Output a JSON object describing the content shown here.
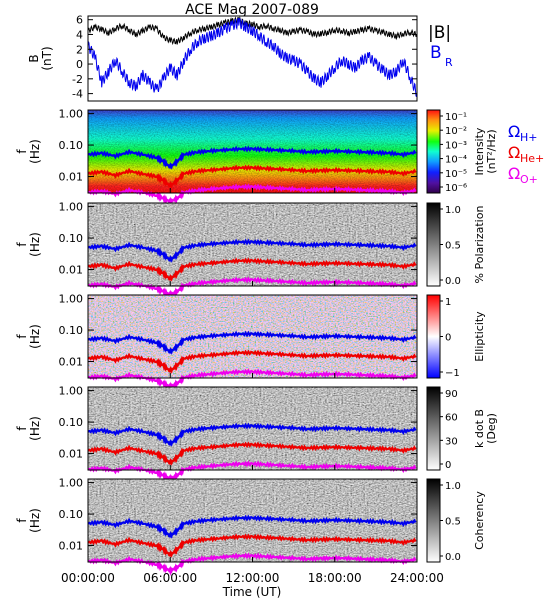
{
  "title": "ACE Mag 2007-089",
  "chart_data": [
    {
      "type": "line",
      "panel": "magnetic-field",
      "ylabel": "B\n(nT)",
      "y_ticks": [
        -4,
        -2,
        0,
        2,
        4,
        6
      ],
      "ylim": [
        -5,
        6.5
      ],
      "x_range_hours": [
        0,
        24
      ],
      "series": [
        {
          "name": "|B|",
          "color": "#000000",
          "x": [
            0,
            0.5,
            1,
            1.5,
            2,
            2.5,
            3,
            3.5,
            4,
            4.5,
            5,
            5.5,
            6,
            6.5,
            7,
            7.5,
            8,
            8.5,
            9,
            9.5,
            10,
            10.5,
            11,
            11.5,
            12,
            12.5,
            13,
            13.5,
            14,
            14.5,
            15,
            15.5,
            16,
            16.5,
            17,
            17.5,
            18,
            18.5,
            19,
            19.5,
            20,
            20.5,
            21,
            21.5,
            22,
            22.5,
            23,
            23.5,
            24
          ],
          "values": [
            4.5,
            5.0,
            4.7,
            4.2,
            4.8,
            5.2,
            4.6,
            4.0,
            4.5,
            5.0,
            4.8,
            3.6,
            3.2,
            3.0,
            3.6,
            4.2,
            4.6,
            4.8,
            5.0,
            5.3,
            5.6,
            5.8,
            6.0,
            5.5,
            5.4,
            5.0,
            5.2,
            4.8,
            4.6,
            4.2,
            4.4,
            4.6,
            4.4,
            4.0,
            4.1,
            4.3,
            4.6,
            4.5,
            4.2,
            4.4,
            4.6,
            4.8,
            4.5,
            4.3,
            4.0,
            3.8,
            4.1,
            4.3,
            4.0
          ]
        },
        {
          "name": "B_R",
          "color": "#0000ee",
          "x": [
            0,
            0.5,
            1,
            1.5,
            2,
            2.5,
            3,
            3.5,
            4,
            4.5,
            5,
            5.5,
            6,
            6.5,
            7,
            7.5,
            8,
            8.5,
            9,
            9.5,
            10,
            10.5,
            11,
            11.5,
            12,
            12.5,
            13,
            13.5,
            14,
            14.5,
            15,
            15.5,
            16,
            16.5,
            17,
            17.5,
            18,
            18.5,
            19,
            19.5,
            20,
            20.5,
            21,
            21.5,
            22,
            22.5,
            23,
            23.5,
            24
          ],
          "values": [
            2.5,
            1.0,
            -2.5,
            -1.0,
            0.5,
            -1.0,
            -2.5,
            -3.0,
            -1.5,
            -2.5,
            -3.5,
            -2.0,
            -0.5,
            -1.5,
            0.5,
            2.0,
            3.0,
            3.5,
            3.8,
            4.2,
            4.8,
            5.2,
            5.6,
            5.0,
            4.5,
            3.8,
            3.0,
            2.5,
            1.5,
            0.8,
            0.5,
            0.0,
            -1.0,
            -2.0,
            -2.5,
            -1.5,
            -0.5,
            0.5,
            0.0,
            -0.5,
            0.5,
            1.0,
            0.0,
            -0.8,
            -1.5,
            -1.0,
            0.5,
            -1.8,
            -4.0
          ]
        }
      ],
      "legend": [
        "|B|",
        "B",
        "R"
      ]
    },
    {
      "type": "heatmap",
      "panel": "intensity",
      "ylabel": "f\n(Hz)",
      "y_ticks": [
        "1.00",
        "0.10",
        "0.01"
      ],
      "colorbar": {
        "title": "Intensity\n(nT²/Hz)",
        "ticks": [
          "10⁻¹",
          "10⁻²",
          "10⁻³",
          "10⁻⁴",
          "10⁻⁵",
          "10⁻⁶"
        ],
        "colors": [
          "#ff1010",
          "#ff9010",
          "#e8f000",
          "#10ff10",
          "#10ffd0",
          "#10a0ff",
          "#1020ff",
          "#5010a0",
          "#30004a"
        ]
      },
      "gyro_labels": [
        {
          "symbol": "Ω",
          "sub": "H+",
          "color": "#0000ee"
        },
        {
          "symbol": "Ω",
          "sub": "He+",
          "color": "#ee0000"
        },
        {
          "symbol": "Ω",
          "sub": "O+",
          "color": "#ee00ee"
        }
      ]
    },
    {
      "type": "heatmap",
      "panel": "polarization",
      "ylabel": "f\n(Hz)",
      "y_ticks": [
        "1.00",
        "0.10",
        "0.01"
      ],
      "colorbar": {
        "title": "% Polarization",
        "ticks": [
          "1.0",
          "0.5",
          "0.0"
        ],
        "colors": [
          "#000000",
          "#ffffff"
        ]
      }
    },
    {
      "type": "heatmap",
      "panel": "ellipticity",
      "ylabel": "f\n(Hz)",
      "y_ticks": [
        "1.00",
        "0.10",
        "0.01"
      ],
      "colorbar": {
        "title": "Ellipticity",
        "ticks": [
          "1",
          "0",
          "−1"
        ],
        "colors": [
          "#ff0000",
          "#ffffff",
          "#0000ff"
        ]
      }
    },
    {
      "type": "heatmap",
      "panel": "k-dot-b",
      "ylabel": "f\n(Hz)",
      "y_ticks": [
        "1.00",
        "0.10",
        "0.01"
      ],
      "colorbar": {
        "title": "k dot B\n(Deg)",
        "ticks": [
          "90",
          "60",
          "30",
          "0"
        ],
        "colors": [
          "#000000",
          "#ffffff"
        ]
      }
    },
    {
      "type": "heatmap",
      "panel": "coherency",
      "ylabel": "f\n(Hz)",
      "y_ticks": [
        "1.00",
        "0.10",
        "0.01"
      ],
      "colorbar": {
        "title": "Coherency",
        "ticks": [
          "1.0",
          "0.5",
          "0.0"
        ],
        "colors": [
          "#000000",
          "#ffffff"
        ]
      }
    }
  ],
  "gyrofrequency_curves": {
    "x": [
      0,
      1,
      2,
      3,
      4,
      5,
      5.5,
      6,
      6.5,
      7,
      8,
      9,
      10,
      11,
      12,
      13,
      14,
      15,
      16,
      17,
      18,
      19,
      20,
      21,
      22,
      23,
      24
    ],
    "H+": [
      0.05,
      0.055,
      0.045,
      0.06,
      0.05,
      0.04,
      0.03,
      0.02,
      0.03,
      0.05,
      0.06,
      0.065,
      0.07,
      0.075,
      0.075,
      0.072,
      0.068,
      0.065,
      0.06,
      0.062,
      0.065,
      0.062,
      0.06,
      0.058,
      0.055,
      0.05,
      0.06
    ],
    "He+": [
      0.0125,
      0.014,
      0.011,
      0.015,
      0.012,
      0.01,
      0.0075,
      0.005,
      0.0075,
      0.0125,
      0.015,
      0.016,
      0.0175,
      0.019,
      0.019,
      0.018,
      0.017,
      0.016,
      0.015,
      0.0155,
      0.016,
      0.0155,
      0.015,
      0.0145,
      0.014,
      0.0125,
      0.015
    ],
    "O+": [
      0.0031,
      0.0034,
      0.0028,
      0.0037,
      0.0031,
      0.0025,
      0.002,
      0.0016,
      0.002,
      0.0031,
      0.0037,
      0.004,
      0.0044,
      0.0047,
      0.0047,
      0.0045,
      0.0042,
      0.004,
      0.0037,
      0.0039,
      0.004,
      0.0039,
      0.0037,
      0.0036,
      0.0034,
      0.0031,
      0.0037
    ]
  },
  "x_axis": {
    "ticks": [
      "00:00:00",
      "06:00:00",
      "12:00:00",
      "18:00:00",
      "24:00:00"
    ],
    "label": "Time (UT)"
  },
  "colors": {
    "h_plus": "#0000ee",
    "he_plus": "#ee0000",
    "o_plus": "#ee00ee"
  }
}
